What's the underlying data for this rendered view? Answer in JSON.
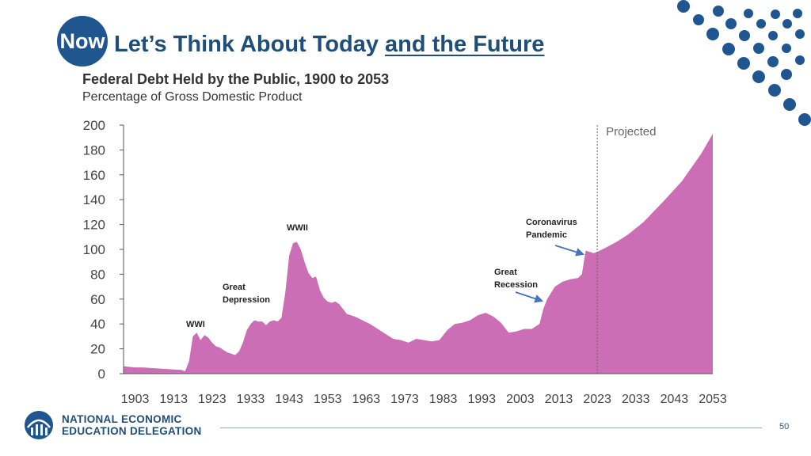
{
  "slide": {
    "now_label": "Now",
    "title_part1": "Let’s Think About Today",
    "title_part2": "and the Future",
    "page_number": "50"
  },
  "logo": {
    "line1": "NATIONAL ECONOMIC",
    "line2": "EDUCATION DELEGATION"
  },
  "colors": {
    "accent": "#1f5690",
    "area_fill": "#cc6eb5",
    "title_blue": "#1f4e79"
  },
  "chart_data": {
    "type": "area",
    "title": "Federal Debt Held by the Public, 1900 to 2053",
    "subtitle": "Percentage of Gross Domestic Product",
    "xlabel": "",
    "ylabel": "",
    "xlim": [
      1900,
      2053
    ],
    "ylim": [
      0,
      200
    ],
    "x_ticks": [
      1903,
      1913,
      1923,
      1933,
      1943,
      1953,
      1963,
      1973,
      1983,
      1993,
      2003,
      2013,
      2023,
      2033,
      2043,
      2053
    ],
    "y_ticks": [
      0,
      20,
      40,
      60,
      80,
      100,
      120,
      140,
      160,
      180,
      200
    ],
    "projection_start": 2023,
    "projection_label": "Projected",
    "grid": false,
    "series": [
      {
        "x": [
          1900,
          1903,
          1905,
          1910,
          1915,
          1916,
          1917,
          1918,
          1919,
          1920,
          1921,
          1922,
          1923,
          1924,
          1925,
          1926,
          1927,
          1928,
          1929,
          1930,
          1931,
          1932,
          1933,
          1934,
          1935,
          1936,
          1937,
          1938,
          1939,
          1940,
          1941,
          1942,
          1943,
          1944,
          1945,
          1946,
          1947,
          1948,
          1949,
          1950,
          1951,
          1952,
          1953,
          1954,
          1955,
          1956,
          1957,
          1958,
          1960,
          1962,
          1964,
          1966,
          1968,
          1970,
          1972,
          1974,
          1976,
          1978,
          1980,
          1982,
          1984,
          1986,
          1988,
          1990,
          1992,
          1994,
          1996,
          1998,
          2000,
          2002,
          2004,
          2006,
          2008,
          2009,
          2010,
          2012,
          2014,
          2016,
          2018,
          2019,
          2020,
          2021,
          2022,
          2023,
          2025,
          2028,
          2031,
          2035,
          2040,
          2045,
          2050,
          2053
        ],
        "y": [
          6,
          5,
          5,
          4,
          3,
          2,
          10,
          30,
          33,
          27,
          31,
          29,
          25,
          22,
          21,
          19,
          17,
          16,
          15,
          18,
          25,
          35,
          40,
          43,
          42,
          42,
          39,
          42,
          43,
          42,
          45,
          65,
          95,
          105,
          106,
          100,
          90,
          81,
          77,
          78,
          67,
          61,
          58,
          57,
          58,
          56,
          52,
          48,
          46,
          43,
          40,
          36,
          32,
          28,
          27,
          25,
          28,
          27,
          26,
          27,
          35,
          40,
          41,
          43,
          47,
          49,
          46,
          41,
          33,
          34,
          36,
          36,
          40,
          52,
          60,
          70,
          74,
          76,
          77,
          80,
          99,
          98,
          97,
          98,
          101,
          106,
          112,
          122,
          138,
          155,
          177,
          193
        ]
      }
    ],
    "annotations": [
      {
        "label": "WWI",
        "x": 1918
      },
      {
        "label": "Great Depression",
        "x": 1932
      },
      {
        "label": "WWII",
        "x": 1946
      },
      {
        "label": "Great Recession",
        "x": 2009
      },
      {
        "label": "Coronavirus Pandemic",
        "x": 2020
      }
    ]
  }
}
